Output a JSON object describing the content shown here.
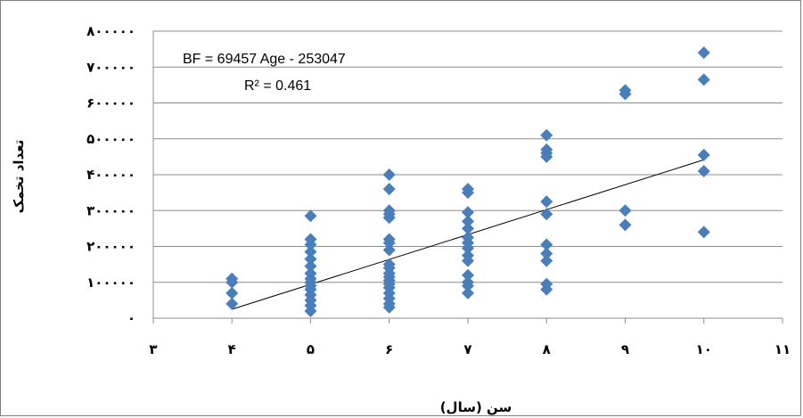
{
  "chart_data": {
    "type": "scatter",
    "title": "",
    "xlabel": "سن (سال)",
    "ylabel": "تعداد تخمک",
    "xlim": [
      3,
      11
    ],
    "ylim": [
      0,
      800000
    ],
    "x_ticks": [
      3,
      4,
      5,
      6,
      7,
      8,
      9,
      10,
      11
    ],
    "x_tick_labels": [
      "۳",
      "۴",
      "۵",
      "۶",
      "۷",
      "۸",
      "۹",
      "۱۰",
      "۱۱"
    ],
    "y_ticks": [
      0,
      100000,
      200000,
      300000,
      400000,
      500000,
      600000,
      700000,
      800000
    ],
    "y_tick_labels": [
      "۰",
      "۱۰۰۰۰۰",
      "۲۰۰۰۰۰",
      "۳۰۰۰۰۰",
      "۴۰۰۰۰۰",
      "۵۰۰۰۰۰",
      "۶۰۰۰۰۰",
      "۷۰۰۰۰۰",
      "۸۰۰۰۰۰"
    ],
    "grid": "horizontal",
    "marker_color": "#4a7ebb",
    "trendline": {
      "slope": 69457,
      "intercept": -253047,
      "x_range": [
        4,
        10
      ],
      "color": "#000000"
    },
    "annotations": [
      "BF = 69457 Age - 253047",
      "R² = 0.461"
    ],
    "points": [
      [
        4,
        110000
      ],
      [
        4,
        100000
      ],
      [
        4,
        70000
      ],
      [
        4,
        40000
      ],
      [
        5,
        285000
      ],
      [
        5,
        220000
      ],
      [
        5,
        205000
      ],
      [
        5,
        185000
      ],
      [
        5,
        165000
      ],
      [
        5,
        145000
      ],
      [
        5,
        125000
      ],
      [
        5,
        110000
      ],
      [
        5,
        100000
      ],
      [
        5,
        90000
      ],
      [
        5,
        80000
      ],
      [
        5,
        65000
      ],
      [
        5,
        50000
      ],
      [
        5,
        35000
      ],
      [
        5,
        20000
      ],
      [
        6,
        400000
      ],
      [
        6,
        360000
      ],
      [
        6,
        300000
      ],
      [
        6,
        290000
      ],
      [
        6,
        280000
      ],
      [
        6,
        220000
      ],
      [
        6,
        210000
      ],
      [
        6,
        190000
      ],
      [
        6,
        150000
      ],
      [
        6,
        140000
      ],
      [
        6,
        125000
      ],
      [
        6,
        115000
      ],
      [
        6,
        105000
      ],
      [
        6,
        95000
      ],
      [
        6,
        85000
      ],
      [
        6,
        70000
      ],
      [
        6,
        55000
      ],
      [
        6,
        40000
      ],
      [
        6,
        30000
      ],
      [
        7,
        360000
      ],
      [
        7,
        350000
      ],
      [
        7,
        295000
      ],
      [
        7,
        270000
      ],
      [
        7,
        250000
      ],
      [
        7,
        225000
      ],
      [
        7,
        210000
      ],
      [
        7,
        195000
      ],
      [
        7,
        175000
      ],
      [
        7,
        160000
      ],
      [
        7,
        120000
      ],
      [
        7,
        100000
      ],
      [
        7,
        90000
      ],
      [
        7,
        70000
      ],
      [
        8,
        510000
      ],
      [
        8,
        470000
      ],
      [
        8,
        460000
      ],
      [
        8,
        450000
      ],
      [
        8,
        325000
      ],
      [
        8,
        290000
      ],
      [
        8,
        205000
      ],
      [
        8,
        180000
      ],
      [
        8,
        160000
      ],
      [
        8,
        95000
      ],
      [
        8,
        80000
      ],
      [
        9,
        635000
      ],
      [
        9,
        625000
      ],
      [
        9,
        300000
      ],
      [
        9,
        260000
      ],
      [
        10,
        740000
      ],
      [
        10,
        665000
      ],
      [
        10,
        455000
      ],
      [
        10,
        410000
      ],
      [
        10,
        240000
      ]
    ]
  }
}
